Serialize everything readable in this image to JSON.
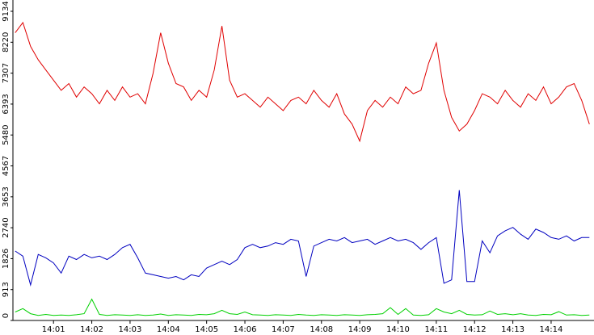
{
  "chart_data": {
    "type": "line",
    "x": [
      0,
      0.2,
      0.4,
      0.6,
      0.8,
      1,
      1.2,
      1.4,
      1.6,
      1.8,
      2,
      2.2,
      2.4,
      2.6,
      2.8,
      3,
      3.2,
      3.4,
      3.6,
      3.8,
      4,
      4.2,
      4.4,
      4.6,
      4.8,
      5,
      5.2,
      5.4,
      5.6,
      5.8,
      6,
      6.2,
      6.4,
      6.6,
      6.8,
      7,
      7.2,
      7.4,
      7.6,
      7.8,
      8,
      8.2,
      8.4,
      8.6,
      8.8,
      9,
      9.2,
      9.4,
      9.6,
      9.8,
      10,
      10.2,
      10.4,
      10.6,
      10.8,
      11,
      11.2,
      11.4,
      11.6,
      11.8,
      12,
      12.2,
      12.4,
      12.6,
      12.8,
      13,
      13.2,
      13.4,
      13.6,
      13.8,
      14,
      14.2,
      14.4,
      14.6,
      14.8,
      15
    ],
    "series": [
      {
        "color": "#e00000",
        "values": [
          8500,
          8800,
          8100,
          7700,
          7400,
          7100,
          6800,
          7000,
          6600,
          6900,
          6700,
          6400,
          6800,
          6500,
          6900,
          6600,
          6700,
          6400,
          7300,
          8500,
          7600,
          7000,
          6900,
          6500,
          6800,
          6600,
          7400,
          8700,
          7100,
          6600,
          6700,
          6500,
          6300,
          6600,
          6400,
          6200,
          6500,
          6600,
          6400,
          6800,
          6500,
          6300,
          6700,
          6100,
          5800,
          5300,
          6200,
          6500,
          6300,
          6600,
          6400,
          6900,
          6700,
          6800,
          7600,
          8200,
          6800,
          6000,
          5600,
          5800,
          6200,
          6700,
          6600,
          6400,
          6800,
          6500,
          6300,
          6700,
          6500,
          6900,
          6400,
          6600,
          6900,
          7000,
          6500,
          5800
        ]
      },
      {
        "color": "#0000c0",
        "values": [
          2050,
          1900,
          1050,
          1950,
          1850,
          1700,
          1400,
          1900,
          1800,
          1950,
          1850,
          1900,
          1800,
          1950,
          2150,
          2250,
          1850,
          1400,
          1350,
          1300,
          1250,
          1300,
          1200,
          1350,
          1300,
          1550,
          1650,
          1750,
          1650,
          1800,
          2150,
          2250,
          2150,
          2200,
          2300,
          2250,
          2400,
          2350,
          1300,
          2200,
          2300,
          2400,
          2350,
          2450,
          2300,
          2350,
          2400,
          2250,
          2350,
          2450,
          2350,
          2400,
          2300,
          2100,
          2300,
          2450,
          1100,
          1200,
          3850,
          1150,
          1150,
          2350,
          2000,
          2500,
          2650,
          2750,
          2550,
          2400,
          2700,
          2600,
          2450,
          2400,
          2500,
          2350,
          2450,
          2450
        ]
      },
      {
        "color": "#00d000",
        "values": [
          250,
          350,
          200,
          150,
          180,
          150,
          160,
          150,
          170,
          200,
          630,
          180,
          150,
          170,
          160,
          150,
          170,
          150,
          160,
          190,
          150,
          170,
          160,
          150,
          180,
          170,
          200,
          300,
          200,
          180,
          250,
          170,
          160,
          150,
          170,
          160,
          150,
          180,
          160,
          150,
          170,
          160,
          150,
          170,
          160,
          150,
          170,
          180,
          200,
          380,
          180,
          350,
          160,
          150,
          170,
          350,
          250,
          200,
          300,
          180,
          160,
          170,
          280,
          180,
          200,
          170,
          200,
          160,
          150,
          180,
          170,
          260,
          160,
          170,
          150,
          160
        ]
      }
    ],
    "xlim": [
      -0.06,
      15.12
    ],
    "xticks": [
      {
        "value": 1,
        "label": "14:01"
      },
      {
        "value": 2,
        "label": "14:02"
      },
      {
        "value": 3,
        "label": "14:03"
      },
      {
        "value": 4,
        "label": "14:04"
      },
      {
        "value": 5,
        "label": "14:05"
      },
      {
        "value": 6,
        "label": "14:06"
      },
      {
        "value": 7,
        "label": "14:07"
      },
      {
        "value": 8,
        "label": "14:08"
      },
      {
        "value": 9,
        "label": "14:09"
      },
      {
        "value": 10,
        "label": "14:10"
      },
      {
        "value": 11,
        "label": "14:11"
      },
      {
        "value": 12,
        "label": "14:12"
      },
      {
        "value": 13,
        "label": "14:13"
      },
      {
        "value": 14,
        "label": "14:14"
      }
    ],
    "ylim": [
      0,
      9134
    ],
    "yticks": [
      0,
      913,
      1826,
      2740,
      3653,
      4567,
      5480,
      6393,
      7307,
      8220,
      9134
    ]
  }
}
